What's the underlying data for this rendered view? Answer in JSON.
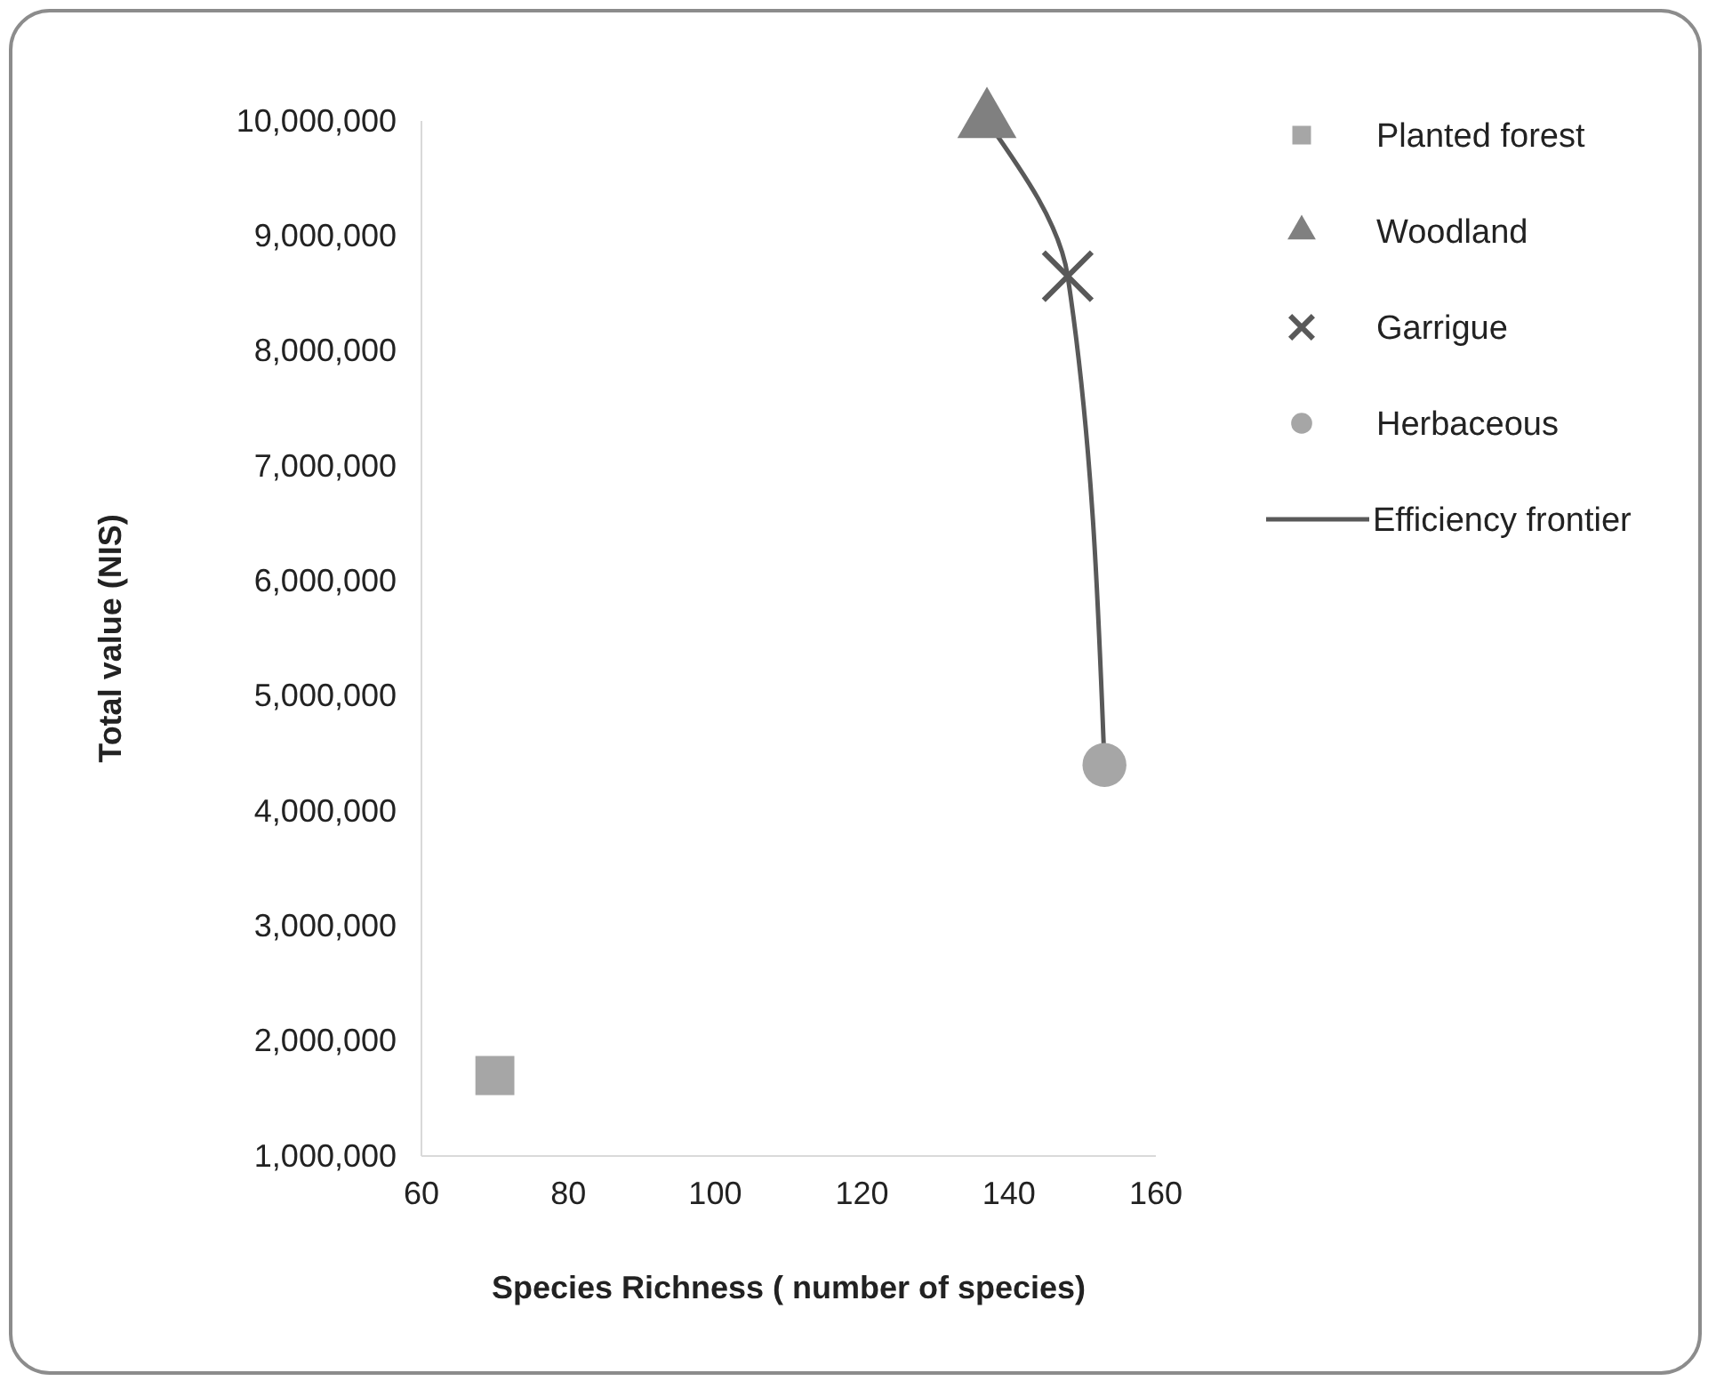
{
  "chart_data": {
    "type": "scatter",
    "xlabel": "Species Richness ( number of species)",
    "ylabel": "Total value  (NIS)",
    "xlim": [
      60,
      160
    ],
    "xticks": [
      60,
      80,
      100,
      120,
      140,
      160
    ],
    "ylim": [
      1000000,
      10000000
    ],
    "yticks": [
      {
        "value": 1000000,
        "label": "1,000,000"
      },
      {
        "value": 2000000,
        "label": "2,000,000"
      },
      {
        "value": 3000000,
        "label": "3,000,000"
      },
      {
        "value": 4000000,
        "label": "4,000,000"
      },
      {
        "value": 5000000,
        "label": "5,000,000"
      },
      {
        "value": 6000000,
        "label": "6,000,000"
      },
      {
        "value": 7000000,
        "label": "7,000,000"
      },
      {
        "value": 8000000,
        "label": "8,000,000"
      },
      {
        "value": 9000000,
        "label": "9,000,000"
      },
      {
        "value": 10000000,
        "label": "10,000,000"
      }
    ],
    "grid": false,
    "legend": "right",
    "series": [
      {
        "name": "Planted forest",
        "marker": "square",
        "color": "#a6a6a6",
        "x": [
          70
        ],
        "values": [
          1700000
        ]
      },
      {
        "name": "Woodland",
        "marker": "triangle",
        "color": "#808080",
        "x": [
          137
        ],
        "values": [
          10000000
        ]
      },
      {
        "name": "Garrigue",
        "marker": "cross",
        "color": "#595959",
        "x": [
          148
        ],
        "values": [
          8650000
        ]
      },
      {
        "name": "Herbaceous",
        "marker": "circle",
        "color": "#a6a6a6",
        "x": [
          153
        ],
        "values": [
          4400000
        ]
      },
      {
        "name": "Efficiency frontier",
        "type": "line",
        "marker": "none",
        "color": "#595959",
        "x": [
          137,
          148,
          153
        ],
        "values": [
          10000000,
          8650000,
          4400000
        ]
      }
    ]
  }
}
